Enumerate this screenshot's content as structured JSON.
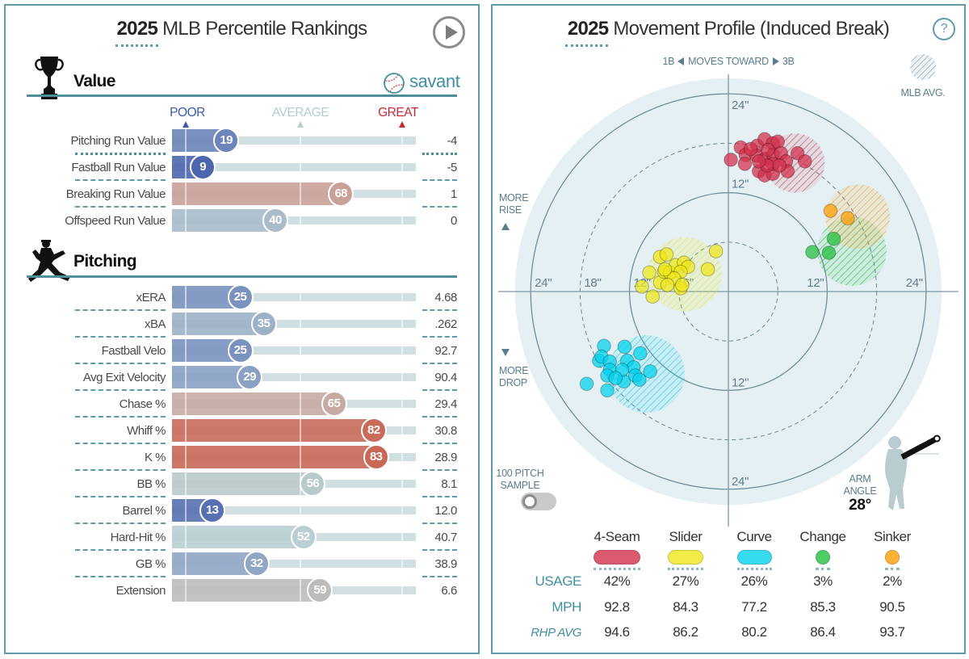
{
  "icons": {
    "play": "play-icon",
    "help": "help-icon",
    "help_glyph": "?",
    "logo": "savant-baseball-icon",
    "value_section": "trophy-icon",
    "pitching_section": "pitcher-icon"
  },
  "chart_data": [
    {
      "type": "bar",
      "orientation": "horizontal",
      "title_year": "2025",
      "title_rest": "MLB Percentile Rankings",
      "logo_text": "savant",
      "xlim": [
        0,
        100
      ],
      "scale_labels": {
        "poor": "POOR",
        "average": "AVERAGE",
        "great": "GREAT"
      },
      "scale_colors": {
        "poor": "#3a5aa8",
        "average": "#b5cdd1",
        "great": "#c8283a"
      },
      "sections": [
        {
          "name": "Value",
          "rows": [
            {
              "label": "Pitching Run Value",
              "percentile": 19,
              "value": "-4",
              "color": "#6b84ba"
            },
            {
              "label": "Fastball Run Value",
              "percentile": 9,
              "value": "-5",
              "color": "#4d66ae"
            },
            {
              "label": "Breaking Run Value",
              "percentile": 68,
              "value": "1",
              "color": "#c9a199"
            },
            {
              "label": "Offspeed Run Value",
              "percentile": 40,
              "value": "0",
              "color": "#a9bccb"
            }
          ]
        },
        {
          "name": "Pitching",
          "rows": [
            {
              "label": "xERA",
              "percentile": 25,
              "value": "4.68",
              "color": "#7b92bf"
            },
            {
              "label": "xBA",
              "percentile": 35,
              "value": ".262",
              "color": "#9cb1c8"
            },
            {
              "label": "Fastball Velo",
              "percentile": 25,
              "value": "92.7",
              "color": "#7b92bf"
            },
            {
              "label": "Avg Exit Velocity",
              "percentile": 29,
              "value": "90.4",
              "color": "#8aa1c4"
            },
            {
              "label": "Chase %",
              "percentile": 65,
              "value": "29.4",
              "color": "#c6aba3"
            },
            {
              "label": "Whiff %",
              "percentile": 82,
              "value": "30.8",
              "color": "#c96b5b"
            },
            {
              "label": "K %",
              "percentile": 83,
              "value": "28.9",
              "color": "#c86857"
            },
            {
              "label": "BB %",
              "percentile": 56,
              "value": "8.1",
              "color": "#b9cacb"
            },
            {
              "label": "Barrel %",
              "percentile": 13,
              "value": "12.0",
              "color": "#5670b1"
            },
            {
              "label": "Hard-Hit %",
              "percentile": 52,
              "value": "40.7",
              "color": "#b9cfd3"
            },
            {
              "label": "GB %",
              "percentile": 32,
              "value": "38.9",
              "color": "#90a6c4"
            },
            {
              "label": "Extension",
              "percentile": 59,
              "value": "6.6",
              "color": "#bcbdbb"
            }
          ]
        }
      ]
    },
    {
      "type": "scatter",
      "title_year": "2025",
      "title_rest": "Movement Profile (Induced Break)",
      "units": "inches",
      "x_direction": {
        "left": "1B",
        "middle": "MOVES TOWARD",
        "right": "3B"
      },
      "y_direction": {
        "up_lines": [
          "MORE",
          "RISE"
        ],
        "down_lines": [
          "MORE",
          "DROP"
        ]
      },
      "rings_inches": [
        6,
        12,
        18,
        24
      ],
      "ring_labels": [
        {
          "side": "left",
          "inches": 24,
          "text": "24\""
        },
        {
          "side": "left",
          "inches": 18,
          "text": "18\""
        },
        {
          "side": "left",
          "inches": 12,
          "text": "12\""
        },
        {
          "side": "left",
          "inches": 6,
          "text": "6\""
        },
        {
          "side": "right",
          "inches": 12,
          "text": "12\""
        },
        {
          "side": "right",
          "inches": 24,
          "text": "24\""
        },
        {
          "side": "top",
          "inches": 24,
          "text": "24\""
        },
        {
          "side": "top",
          "inches": 12,
          "text": "12\""
        },
        {
          "side": "bottom",
          "inches": 12,
          "text": "12\""
        },
        {
          "side": "bottom",
          "inches": 24,
          "text": "24\""
        }
      ],
      "avg_legend_label": "MLB AVG.",
      "sample_toggle": {
        "label_lines": [
          "100 PITCH",
          "SAMPLE"
        ],
        "on": false
      },
      "arm_angle": {
        "label_lines": [
          "ARM",
          "ANGLE"
        ],
        "value_text": "28°",
        "degrees": 28
      },
      "table_labels": {
        "usage": "USAGE",
        "mph": "MPH",
        "rhp_avg": "RHP AVG"
      },
      "series": [
        {
          "name": "4-Seam",
          "color": "#d22d49",
          "usage": "42%",
          "mph": "92.8",
          "rhp_avg": "94.6",
          "mlb_avg": {
            "x": 8.1,
            "y": 15.6,
            "r": 3.6
          },
          "points": [
            [
              0.3,
              16.0
            ],
            [
              1.5,
              17.5
            ],
            [
              2.1,
              16.6
            ],
            [
              2.0,
              15.5
            ],
            [
              3.5,
              17.7
            ],
            [
              4.4,
              18.5
            ],
            [
              5.4,
              18.0
            ],
            [
              6.0,
              18.2
            ],
            [
              3.4,
              16.5
            ],
            [
              4.4,
              16.1
            ],
            [
              5.4,
              16.6
            ],
            [
              6.4,
              16.8
            ],
            [
              3.7,
              14.6
            ],
            [
              4.4,
              14.1
            ],
            [
              5.4,
              14.3
            ],
            [
              7.0,
              15.8
            ],
            [
              7.2,
              14.6
            ],
            [
              8.4,
              16.8
            ],
            [
              9.3,
              15.8
            ],
            [
              5.4,
              15.5
            ],
            [
              4.7,
              15.3
            ],
            [
              2.7,
              17.3
            ],
            [
              4.8,
              17.2
            ],
            [
              3.7,
              15.8
            ],
            [
              6.2,
              15.3
            ]
          ]
        },
        {
          "name": "Slider",
          "color": "#eee716",
          "usage": "27%",
          "mph": "84.3",
          "rhp_avg": "86.2",
          "mlb_avg": {
            "x": -5.3,
            "y": 2.1,
            "r": 4.5
          },
          "points": [
            [
              -1.5,
              4.9
            ],
            [
              -2.5,
              2.7
            ],
            [
              -8.3,
              4.2
            ],
            [
              -7.5,
              4.5
            ],
            [
              -9.6,
              2.3
            ],
            [
              -10.5,
              0.6
            ],
            [
              -9.2,
              -0.6
            ],
            [
              -8.3,
              1.1
            ],
            [
              -7.8,
              2.4
            ],
            [
              -7.1,
              2.3
            ],
            [
              -6.4,
              3.2
            ],
            [
              -5.4,
              3.5
            ],
            [
              -4.9,
              3.0
            ],
            [
              -5.8,
              2.4
            ],
            [
              -6.6,
              1.6
            ],
            [
              -7.4,
              0.8
            ],
            [
              -5.8,
              0.4
            ],
            [
              -5.6,
              0.8
            ],
            [
              -7.7,
              2.7
            ]
          ]
        },
        {
          "name": "Curve",
          "color": "#00d1ed",
          "usage": "26%",
          "mph": "77.2",
          "rhp_avg": "80.2",
          "mlb_avg": {
            "x": -10.0,
            "y": -10.0,
            "r": 4.7
          },
          "points": [
            [
              -15.1,
              -6.6
            ],
            [
              -12.6,
              -6.7
            ],
            [
              -10.7,
              -7.5
            ],
            [
              -15.7,
              -8.4
            ],
            [
              -15.4,
              -7.9
            ],
            [
              -14.4,
              -8.5
            ],
            [
              -14.4,
              -9.5
            ],
            [
              -14.7,
              -10.2
            ],
            [
              -17.2,
              -11.2
            ],
            [
              -14.7,
              -12.0
            ],
            [
              -12.7,
              -10.9
            ],
            [
              -12.3,
              -8.4
            ],
            [
              -11.5,
              -9.2
            ],
            [
              -11.3,
              -10.2
            ],
            [
              -10.8,
              -10.7
            ],
            [
              -9.5,
              -9.7
            ],
            [
              -12.9,
              -9.5
            ],
            [
              -13.7,
              -10.5
            ]
          ]
        },
        {
          "name": "Change",
          "color": "#1dbe3a",
          "usage": "3%",
          "mph": "85.3",
          "rhp_avg": "86.4",
          "mlb_avg": {
            "x": 15.0,
            "y": 4.9,
            "r": 4.2
          },
          "points": [
            [
              12.8,
              6.4
            ],
            [
              10.2,
              4.8
            ],
            [
              12.2,
              4.7
            ]
          ]
        },
        {
          "name": "Sinker",
          "color": "#fe9d00",
          "usage": "2%",
          "mph": "90.5",
          "rhp_avg": "93.7",
          "mlb_avg": {
            "x": 15.7,
            "y": 9.1,
            "r": 3.9
          },
          "points": [
            [
              12.4,
              9.8
            ],
            [
              14.5,
              8.9
            ]
          ]
        }
      ]
    }
  ]
}
